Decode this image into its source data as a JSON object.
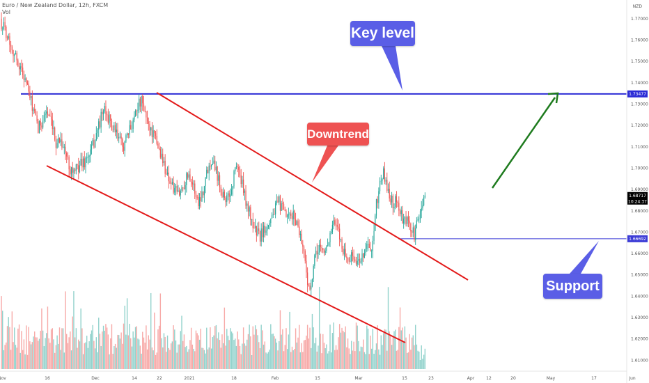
{
  "header": {
    "title": "Euro / New Zealand Dollar, 12h, FXCM",
    "volume_label": "Vol"
  },
  "price_axis": {
    "currency": "NZD",
    "ticks": [
      "1.77000",
      "1.76000",
      "1.75000",
      "1.74000",
      "1.73000",
      "1.72000",
      "1.71000",
      "1.70000",
      "1.69000",
      "1.68000",
      "1.67000",
      "1.66000",
      "1.65000",
      "1.64000",
      "1.63000",
      "1.62000",
      "1.61000"
    ]
  },
  "price_badges": {
    "key_level": "1.73477",
    "current_price": "1.68717",
    "countdown": "10:24:37",
    "support": "1.66692"
  },
  "time_axis": {
    "labels": [
      "Nov",
      "16",
      "Dec",
      "14",
      "22",
      "2021",
      "18",
      "Feb",
      "15",
      "Mar",
      "15",
      "23",
      "Apr",
      "12",
      "20",
      "May",
      "17",
      "Jun"
    ]
  },
  "annotations": {
    "key_level": "Key level",
    "downtrend": "Downtrend",
    "support": "Support"
  },
  "colors": {
    "bull": "#26a69a",
    "bear": "#ef5350",
    "key_level_line": "#2d2dd6",
    "support_line": "#3b3bd6",
    "trendline": "#e31a1a",
    "forecast_arrow": "#1e7b1e",
    "callout_blue": "#5a5ee6",
    "callout_red": "#ee5252"
  },
  "chart_data": {
    "type": "candlestick",
    "symbol": "EURNZD",
    "timeframe": "12h",
    "ylim": [
      1.605,
      1.775
    ],
    "levels": {
      "key_level": 1.73477,
      "support": 1.66692,
      "last_price": 1.68717
    },
    "close_path": [
      [
        0,
        1.768
      ],
      [
        4,
        1.764
      ],
      [
        8,
        1.758
      ],
      [
        12,
        1.752
      ],
      [
        16,
        1.747
      ],
      [
        20,
        1.742
      ],
      [
        24,
        1.733
      ],
      [
        27,
        1.727
      ],
      [
        31,
        1.718
      ],
      [
        34,
        1.722
      ],
      [
        38,
        1.727
      ],
      [
        42,
        1.72
      ],
      [
        46,
        1.712
      ],
      [
        50,
        1.714
      ],
      [
        54,
        1.707
      ],
      [
        58,
        1.7
      ],
      [
        62,
        1.698
      ],
      [
        66,
        1.702
      ],
      [
        70,
        1.703
      ],
      [
        74,
        1.706
      ],
      [
        78,
        1.712
      ],
      [
        82,
        1.72
      ],
      [
        86,
        1.727
      ],
      [
        90,
        1.724
      ],
      [
        94,
        1.718
      ],
      [
        98,
        1.715
      ],
      [
        102,
        1.71
      ],
      [
        106,
        1.714
      ],
      [
        110,
        1.721
      ],
      [
        114,
        1.729
      ],
      [
        118,
        1.731
      ],
      [
        122,
        1.724
      ],
      [
        126,
        1.718
      ],
      [
        130,
        1.713
      ],
      [
        134,
        1.707
      ],
      [
        138,
        1.7
      ],
      [
        142,
        1.694
      ],
      [
        146,
        1.689
      ],
      [
        150,
        1.688
      ],
      [
        154,
        1.693
      ],
      [
        158,
        1.698
      ],
      [
        162,
        1.691
      ],
      [
        166,
        1.684
      ],
      [
        170,
        1.69
      ],
      [
        174,
        1.7
      ],
      [
        178,
        1.705
      ],
      [
        182,
        1.697
      ],
      [
        186,
        1.689
      ],
      [
        190,
        1.685
      ],
      [
        194,
        1.69
      ],
      [
        198,
        1.703
      ],
      [
        202,
        1.694
      ],
      [
        206,
        1.685
      ],
      [
        210,
        1.677
      ],
      [
        214,
        1.671
      ],
      [
        218,
        1.668
      ],
      [
        222,
        1.672
      ],
      [
        226,
        1.676
      ],
      [
        230,
        1.68
      ],
      [
        234,
        1.684
      ],
      [
        238,
        1.679
      ],
      [
        242,
        1.676
      ],
      [
        246,
        1.678
      ],
      [
        250,
        1.673
      ],
      [
        254,
        1.664
      ],
      [
        256,
        1.656
      ],
      [
        258,
        1.648
      ],
      [
        260,
        1.641
      ],
      [
        262,
        1.648
      ],
      [
        264,
        1.657
      ],
      [
        268,
        1.664
      ],
      [
        272,
        1.66
      ],
      [
        276,
        1.667
      ],
      [
        280,
        1.674
      ],
      [
        284,
        1.67
      ],
      [
        288,
        1.662
      ],
      [
        292,
        1.657
      ],
      [
        296,
        1.659
      ],
      [
        300,
        1.655
      ],
      [
        304,
        1.659
      ],
      [
        308,
        1.664
      ],
      [
        312,
        1.66
      ],
      [
        314,
        1.669
      ],
      [
        316,
        1.683
      ],
      [
        318,
        1.689
      ],
      [
        320,
        1.696
      ],
      [
        322,
        1.697
      ],
      [
        324,
        1.693
      ],
      [
        327,
        1.688
      ],
      [
        330,
        1.683
      ],
      [
        333,
        1.686
      ],
      [
        336,
        1.679
      ],
      [
        339,
        1.674
      ],
      [
        342,
        1.676
      ],
      [
        345,
        1.671
      ],
      [
        348,
        1.669
      ],
      [
        351,
        1.675
      ],
      [
        354,
        1.681
      ],
      [
        356,
        1.687
      ],
      [
        357,
        1.687
      ]
    ]
  }
}
